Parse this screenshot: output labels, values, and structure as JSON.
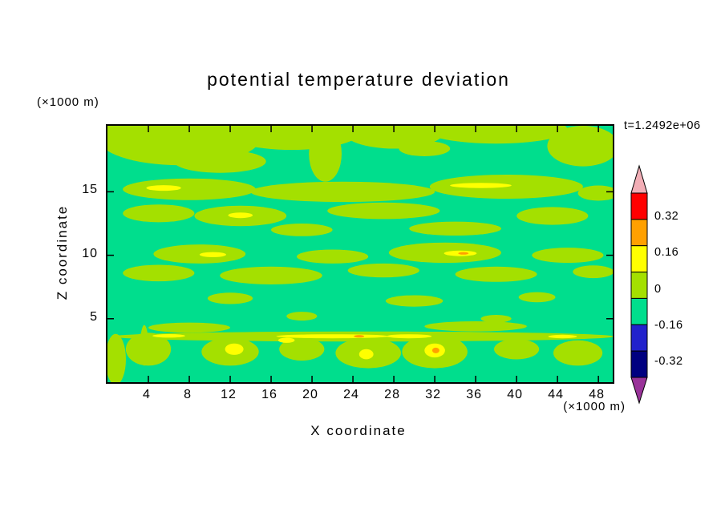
{
  "chart_data": {
    "type": "heatmap",
    "subtype": "filled-contour",
    "title": "potential temperature deviation",
    "xlabel": "X coordinate",
    "ylabel": "Z coordinate",
    "x_unit": "(×1000 m)",
    "y_unit": "(×1000 m)",
    "timestamp": "t=1.2492e+06",
    "grid": false,
    "legend_position": "right",
    "xlim": [
      0,
      49.4
    ],
    "ylim": [
      0,
      20.2
    ],
    "x_ticks": [
      4,
      8,
      12,
      16,
      20,
      24,
      28,
      32,
      36,
      40,
      44,
      48
    ],
    "y_ticks": [
      5,
      10,
      15
    ],
    "contour_levels": [
      -0.32,
      -0.16,
      0,
      0.16,
      0.32
    ],
    "colorbar": {
      "labels": [
        "0.32",
        "0.16",
        "0",
        "-0.16",
        "-0.32"
      ],
      "segment_colors": [
        "#FF0000",
        "#FFA000",
        "#FFFF00",
        "#A4E000",
        "#00DE8D",
        "#2222CC",
        "#000080"
      ],
      "overflow_top_color": "#F2AEB6",
      "overflow_bottom_color": "#993399"
    },
    "background": {
      "level": "-0.16 to 0",
      "color": "#00DE8D"
    },
    "features": [
      {
        "level": "0 to 0.16",
        "color": "#A4E000",
        "blobs": [
          [
            7,
            19.3,
            8,
            2.2
          ],
          [
            18,
            19.9,
            7,
            1.6
          ],
          [
            21.3,
            18.0,
            1.6,
            2.2
          ],
          [
            28,
            19.8,
            5,
            1.4
          ],
          [
            38,
            19.9,
            7,
            1.1
          ],
          [
            46.5,
            18.6,
            3.5,
            1.6
          ],
          [
            11,
            17.4,
            4.5,
            0.9
          ],
          [
            31,
            18.4,
            2.5,
            0.6
          ],
          [
            8,
            15.2,
            6.5,
            0.85
          ],
          [
            23,
            15.0,
            9,
            0.8
          ],
          [
            39,
            15.4,
            7.5,
            0.95
          ],
          [
            48,
            14.9,
            2,
            0.6
          ],
          [
            5,
            13.3,
            3.5,
            0.7
          ],
          [
            13,
            13.1,
            4.5,
            0.8
          ],
          [
            27,
            13.5,
            5.5,
            0.65
          ],
          [
            43.5,
            13.1,
            3.5,
            0.7
          ],
          [
            19,
            12.0,
            3,
            0.5
          ],
          [
            34,
            12.1,
            4.5,
            0.55
          ],
          [
            9,
            10.1,
            4.5,
            0.75
          ],
          [
            22,
            9.9,
            3.5,
            0.55
          ],
          [
            33,
            10.2,
            5.5,
            0.8
          ],
          [
            45,
            10.0,
            3.5,
            0.6
          ],
          [
            5,
            8.6,
            3.5,
            0.65
          ],
          [
            16,
            8.4,
            5,
            0.7
          ],
          [
            27,
            8.8,
            3.5,
            0.55
          ],
          [
            38,
            8.5,
            4,
            0.6
          ],
          [
            47.5,
            8.7,
            2,
            0.5
          ],
          [
            12,
            6.6,
            2.2,
            0.45
          ],
          [
            30,
            6.4,
            2.8,
            0.45
          ],
          [
            42,
            6.7,
            1.8,
            0.4
          ],
          [
            19,
            5.2,
            1.5,
            0.35
          ],
          [
            38,
            5.0,
            1.5,
            0.3
          ],
          [
            25,
            3.6,
            24.5,
            0.4
          ],
          [
            8,
            4.3,
            4,
            0.4
          ],
          [
            36,
            4.4,
            5,
            0.4
          ],
          [
            4,
            2.6,
            2.2,
            1.3
          ],
          [
            3.6,
            2.9,
            0.4,
            1.6
          ],
          [
            12,
            2.4,
            2.8,
            1.1
          ],
          [
            19,
            2.6,
            2.2,
            0.9
          ],
          [
            25.5,
            2.3,
            3.2,
            1.2
          ],
          [
            32,
            2.4,
            3.2,
            1.3
          ],
          [
            40,
            2.6,
            2.2,
            0.8
          ],
          [
            46,
            2.3,
            2.4,
            1.0
          ],
          [
            0.8,
            1.8,
            1.0,
            2.0
          ]
        ]
      },
      {
        "level": "0.16 to 0.32",
        "color": "#FFFF00",
        "blobs": [
          [
            5.5,
            15.3,
            1.7,
            0.22
          ],
          [
            36.5,
            15.5,
            3.0,
            0.2
          ],
          [
            13,
            13.15,
            1.2,
            0.22
          ],
          [
            10.3,
            10.05,
            1.3,
            0.2
          ],
          [
            34.5,
            10.15,
            1.6,
            0.22
          ],
          [
            22,
            3.62,
            5.5,
            0.16
          ],
          [
            29.5,
            3.62,
            2.2,
            0.16
          ],
          [
            6,
            3.65,
            1.6,
            0.14
          ],
          [
            44.5,
            3.6,
            1.4,
            0.14
          ],
          [
            17.5,
            3.3,
            0.8,
            0.2
          ],
          [
            12.4,
            2.6,
            0.9,
            0.45
          ],
          [
            25.3,
            2.2,
            0.7,
            0.4
          ],
          [
            32,
            2.5,
            1.0,
            0.55
          ]
        ]
      },
      {
        "level": "0.32 to 0.48",
        "color": "#FFA000",
        "blobs": [
          [
            24.6,
            3.62,
            0.5,
            0.1
          ],
          [
            32.1,
            2.5,
            0.35,
            0.22
          ],
          [
            34.8,
            10.15,
            0.5,
            0.1
          ]
        ]
      }
    ]
  }
}
